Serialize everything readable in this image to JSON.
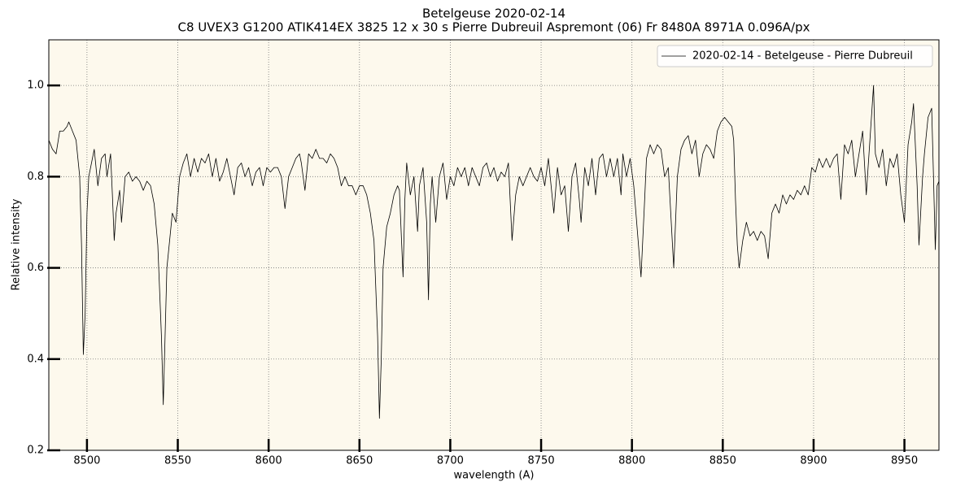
{
  "chart_data": {
    "type": "line",
    "title": "Betelgeuse 2020-02-14",
    "subtitle": "C8 UVEX3 G1200 ATIK414EX 3825 12 x 30 s Pierre Dubreuil Aspremont (06) Fr 8480A 8971A 0.096A/px",
    "xlabel": "wavelength (A)",
    "ylabel": "Relative intensity",
    "xlim": [
      8479,
      8969
    ],
    "ylim": [
      0.2,
      1.1
    ],
    "xticks": [
      8500,
      8550,
      8600,
      8650,
      8700,
      8750,
      8800,
      8850,
      8900,
      8950
    ],
    "yticks": [
      0.2,
      0.4,
      0.6,
      0.8,
      {
        "value": 1,
        "label": "1.0"
      }
    ],
    "grid": true,
    "legend": "upper right",
    "series": [
      {
        "name": "2020-02-14 - Betelgeuse - Pierre Dubreuil",
        "color": "#000000",
        "x": [
          8479,
          8481,
          8483,
          8485,
          8487,
          8489,
          8490,
          8492,
          8494,
          8496,
          8497,
          8498,
          8499,
          8500,
          8501,
          8503,
          8504,
          8506,
          8508,
          8510,
          8511,
          8513,
          8514,
          8515,
          8516,
          8518,
          8519,
          8521,
          8523,
          8525,
          8527,
          8529,
          8531,
          8533,
          8535,
          8537,
          8539,
          8541,
          8542,
          8543,
          8544,
          8546,
          8547,
          8549,
          8551,
          8553,
          8555,
          8557,
          8559,
          8561,
          8563,
          8565,
          8567,
          8569,
          8571,
          8573,
          8575,
          8577,
          8579,
          8581,
          8583,
          8585,
          8587,
          8589,
          8591,
          8593,
          8595,
          8597,
          8599,
          8601,
          8603,
          8605,
          8607,
          8609,
          8611,
          8613,
          8615,
          8617,
          8618,
          8620,
          8622,
          8624,
          8626,
          8628,
          8630,
          8632,
          8634,
          8636,
          8638,
          8640,
          8642,
          8644,
          8646,
          8648,
          8650,
          8652,
          8654,
          8656,
          8658,
          8660,
          8661,
          8662,
          8663,
          8665,
          8667,
          8669,
          8671,
          8672,
          8674,
          8675,
          8676,
          8678,
          8680,
          8682,
          8683,
          8685,
          8687,
          8688,
          8689,
          8690,
          8692,
          8694,
          8696,
          8698,
          8700,
          8702,
          8704,
          8706,
          8708,
          8710,
          8712,
          8714,
          8716,
          8718,
          8720,
          8722,
          8724,
          8726,
          8728,
          8730,
          8732,
          8734,
          8736,
          8738,
          8740,
          8742,
          8744,
          8746,
          8748,
          8750,
          8752,
          8754,
          8756,
          8757,
          8759,
          8761,
          8763,
          8765,
          8767,
          8769,
          8771,
          8772,
          8774,
          8776,
          8778,
          8780,
          8782,
          8784,
          8786,
          8788,
          8790,
          8792,
          8794,
          8795,
          8797,
          8799,
          8801,
          8803,
          8805,
          8807,
          8808,
          8810,
          8812,
          8814,
          8816,
          8818,
          8820,
          8823,
          8825,
          8827,
          8829,
          8831,
          8833,
          8835,
          8837,
          8839,
          8841,
          8843,
          8845,
          8847,
          8849,
          8851,
          8853,
          8855,
          8856,
          8857,
          8858,
          8859,
          8861,
          8863,
          8865,
          8867,
          8869,
          8871,
          8873,
          8875,
          8877,
          8879,
          8881,
          8883,
          8885,
          8887,
          8889,
          8891,
          8893,
          8895,
          8897,
          8899,
          8901,
          8903,
          8905,
          8907,
          8909,
          8911,
          8913,
          8915,
          8917,
          8919,
          8921,
          8923,
          8925,
          8927,
          8929,
          8931,
          8933,
          8934,
          8936,
          8938,
          8940,
          8942,
          8944,
          8946,
          8948,
          8950,
          8952,
          8954,
          8955,
          8957,
          8958,
          8960,
          8961,
          8963,
          8965,
          8966,
          8967,
          8968,
          8969
        ],
        "values": [
          0.88,
          0.86,
          0.85,
          0.9,
          0.9,
          0.91,
          0.92,
          0.9,
          0.88,
          0.8,
          0.65,
          0.41,
          0.5,
          0.72,
          0.8,
          0.84,
          0.86,
          0.78,
          0.84,
          0.85,
          0.8,
          0.85,
          0.76,
          0.66,
          0.72,
          0.77,
          0.7,
          0.8,
          0.81,
          0.79,
          0.8,
          0.79,
          0.77,
          0.79,
          0.78,
          0.74,
          0.65,
          0.45,
          0.3,
          0.45,
          0.6,
          0.68,
          0.72,
          0.7,
          0.8,
          0.83,
          0.85,
          0.8,
          0.84,
          0.81,
          0.84,
          0.83,
          0.85,
          0.8,
          0.84,
          0.79,
          0.81,
          0.84,
          0.8,
          0.76,
          0.82,
          0.83,
          0.8,
          0.82,
          0.78,
          0.81,
          0.82,
          0.78,
          0.82,
          0.81,
          0.82,
          0.82,
          0.8,
          0.73,
          0.8,
          0.82,
          0.84,
          0.85,
          0.83,
          0.77,
          0.85,
          0.84,
          0.86,
          0.84,
          0.84,
          0.83,
          0.85,
          0.84,
          0.82,
          0.78,
          0.8,
          0.78,
          0.78,
          0.76,
          0.78,
          0.78,
          0.76,
          0.72,
          0.66,
          0.45,
          0.27,
          0.4,
          0.6,
          0.69,
          0.72,
          0.76,
          0.78,
          0.77,
          0.58,
          0.75,
          0.83,
          0.76,
          0.8,
          0.68,
          0.78,
          0.82,
          0.7,
          0.53,
          0.74,
          0.8,
          0.7,
          0.8,
          0.83,
          0.75,
          0.8,
          0.78,
          0.82,
          0.8,
          0.82,
          0.78,
          0.82,
          0.8,
          0.78,
          0.82,
          0.83,
          0.8,
          0.82,
          0.79,
          0.81,
          0.8,
          0.83,
          0.66,
          0.76,
          0.8,
          0.78,
          0.8,
          0.82,
          0.8,
          0.79,
          0.82,
          0.78,
          0.84,
          0.76,
          0.72,
          0.82,
          0.76,
          0.78,
          0.68,
          0.8,
          0.83,
          0.75,
          0.7,
          0.82,
          0.78,
          0.84,
          0.76,
          0.84,
          0.85,
          0.8,
          0.84,
          0.8,
          0.84,
          0.76,
          0.85,
          0.8,
          0.84,
          0.78,
          0.68,
          0.58,
          0.75,
          0.84,
          0.87,
          0.85,
          0.87,
          0.86,
          0.8,
          0.82,
          0.6,
          0.8,
          0.86,
          0.88,
          0.89,
          0.85,
          0.88,
          0.8,
          0.85,
          0.87,
          0.86,
          0.84,
          0.9,
          0.92,
          0.93,
          0.92,
          0.91,
          0.88,
          0.75,
          0.65,
          0.6,
          0.66,
          0.7,
          0.67,
          0.68,
          0.66,
          0.68,
          0.67,
          0.62,
          0.72,
          0.74,
          0.72,
          0.76,
          0.74,
          0.76,
          0.75,
          0.77,
          0.76,
          0.78,
          0.76,
          0.82,
          0.81,
          0.84,
          0.82,
          0.84,
          0.82,
          0.84,
          0.85,
          0.75,
          0.87,
          0.85,
          0.88,
          0.8,
          0.85,
          0.9,
          0.76,
          0.88,
          1.0,
          0.85,
          0.82,
          0.86,
          0.78,
          0.84,
          0.82,
          0.85,
          0.76,
          0.7,
          0.87,
          0.92,
          0.96,
          0.78,
          0.65,
          0.8,
          0.85,
          0.93,
          0.95,
          0.8,
          0.64,
          0.78,
          0.79
        ]
      }
    ]
  }
}
